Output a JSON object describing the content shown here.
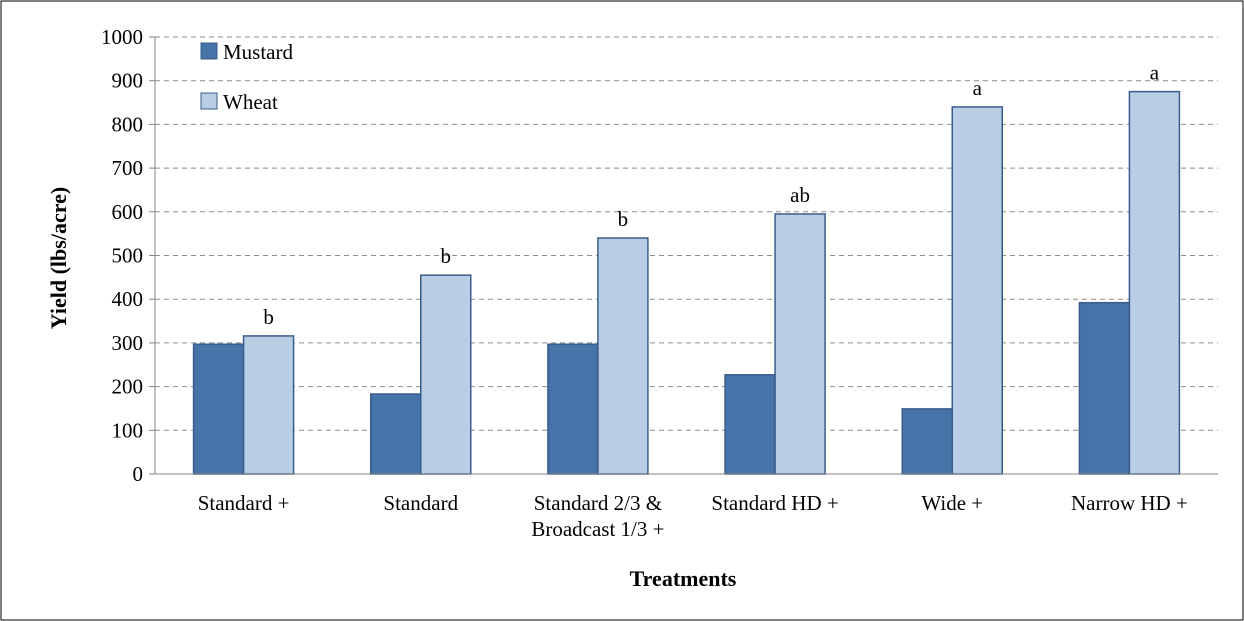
{
  "chart_data": {
    "type": "bar",
    "title": "",
    "xlabel": "Treatments",
    "ylabel": "Yield (lbs/acre)",
    "ylim": [
      0,
      1000
    ],
    "yticks": [
      0,
      100,
      200,
      300,
      400,
      500,
      600,
      700,
      800,
      900,
      1000
    ],
    "grid": "horizontal dashed",
    "legend_position": "top-left",
    "categories": [
      [
        "Standard +"
      ],
      [
        "Standard"
      ],
      [
        "Standard 2/3 &",
        "Broadcast 1/3 +"
      ],
      [
        "Standard HD +"
      ],
      [
        "Wide +"
      ],
      [
        "Narrow HD +"
      ]
    ],
    "series": [
      {
        "name": "Mustard",
        "color": "#4673a8",
        "values": [
          297,
          183,
          297,
          227,
          149,
          392
        ]
      },
      {
        "name": "Wheat",
        "color": "#b9cde5",
        "values": [
          316,
          455,
          540,
          595,
          840,
          875
        ]
      }
    ],
    "annotations": {
      "series": "Wheat",
      "labels": [
        "b",
        "b",
        "b",
        "ab",
        "a",
        "a"
      ]
    }
  }
}
